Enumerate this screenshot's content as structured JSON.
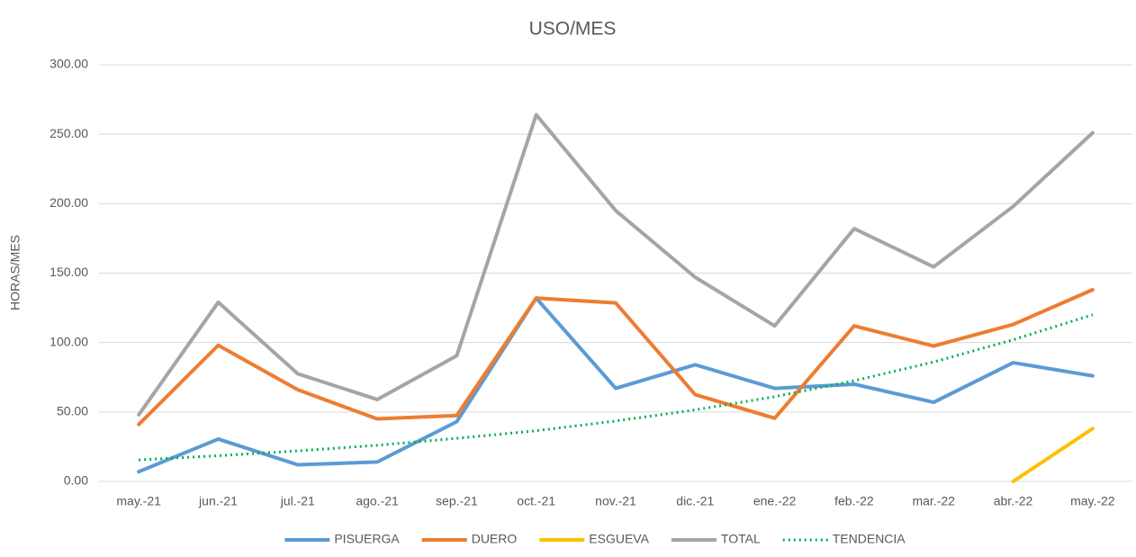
{
  "chart_data": {
    "type": "line",
    "title": "USO/MES",
    "y_label": "HORAS/MES",
    "categories": [
      "may.-21",
      "jun.-21",
      "jul.-21",
      "ago.-21",
      "sep.-21",
      "oct.-21",
      "nov.-21",
      "dic.-21",
      "ene.-22",
      "feb.-22",
      "mar.-22",
      "abr.-22",
      "may.-22"
    ],
    "series": [
      {
        "name": "PISUERGA",
        "color": "#5b9bd5",
        "style": "solid",
        "values": [
          7,
          30.5,
          12,
          14,
          43,
          132,
          67,
          84,
          67,
          70,
          57,
          85.5,
          76
        ]
      },
      {
        "name": "DUERO",
        "color": "#ed7d31",
        "style": "solid",
        "values": [
          41,
          98,
          66,
          45,
          47.5,
          132,
          128.5,
          62.5,
          45.5,
          112,
          97.5,
          113,
          138
        ]
      },
      {
        "name": "ESGUEVA",
        "color": "#ffc000",
        "style": "solid",
        "values": [
          null,
          null,
          null,
          null,
          null,
          null,
          null,
          null,
          null,
          null,
          null,
          0,
          38
        ]
      },
      {
        "name": "TOTAL",
        "color": "#a5a5a5",
        "style": "solid",
        "values": [
          48,
          129,
          77.5,
          59,
          90.5,
          264,
          195,
          147,
          112,
          182,
          154.5,
          198,
          251
        ]
      },
      {
        "name": "TENDENCIA",
        "color": "#00b050",
        "style": "dotted",
        "values": [
          15.5,
          18.5,
          22,
          26,
          31,
          36.5,
          43.5,
          51.5,
          61,
          72.5,
          86,
          102,
          120
        ]
      }
    ],
    "ylim": [
      0,
      300
    ],
    "yticks": [
      {
        "value": 0,
        "label": "0.00"
      },
      {
        "value": 50,
        "label": "50.00"
      },
      {
        "value": 100,
        "label": "100.00"
      },
      {
        "value": 150,
        "label": "150.00"
      },
      {
        "value": 200,
        "label": "200.00"
      },
      {
        "value": 250,
        "label": "250.00"
      },
      {
        "value": 300,
        "label": "300.00"
      }
    ],
    "grid": true,
    "legend": "bottom"
  }
}
